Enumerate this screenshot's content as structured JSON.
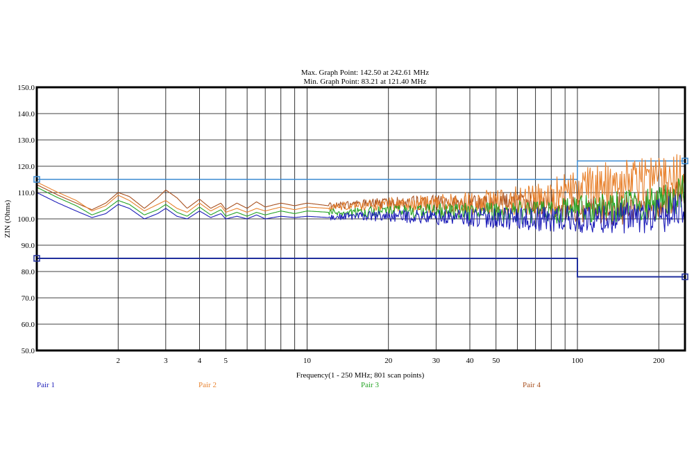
{
  "chart_data": {
    "type": "line",
    "title_lines": [
      "Max. Graph Point: 142.50 at 242.61 MHz",
      "Min. Graph Point: 83.21 at 121.40 MHz"
    ],
    "xlabel": "Frequency(1 - 250 MHz; 801 scan points)",
    "ylabel": "ZIN (Ohms)",
    "x_scale": "log",
    "xlim": [
      1,
      250
    ],
    "ylim": [
      50,
      150
    ],
    "grid": true,
    "x_tick_values": [
      2,
      3,
      4,
      5,
      10,
      20,
      30,
      40,
      50,
      100,
      200
    ],
    "x_tick_labels": [
      "2",
      "3",
      "4",
      "5",
      "10",
      "20",
      "30",
      "40",
      "50",
      "100",
      "200"
    ],
    "x_minor_grid": [
      6,
      7,
      8,
      9,
      60,
      70,
      80,
      90
    ],
    "y_tick_values": [
      50,
      60,
      70,
      80,
      90,
      100,
      110,
      120,
      130,
      140,
      150
    ],
    "y_tick_labels": [
      "50.0",
      "60.0",
      "70.0",
      "80.0",
      "90.0",
      "100.0",
      "110.0",
      "120.0",
      "130.0",
      "140.0",
      "150.0"
    ],
    "limit_lines": [
      {
        "color": "#3a8ad2",
        "points": [
          [
            1,
            115
          ],
          [
            100,
            115
          ],
          [
            100,
            122
          ],
          [
            250,
            122
          ]
        ]
      },
      {
        "color": "#1f2e9c",
        "points": [
          [
            1,
            85
          ],
          [
            100,
            85
          ],
          [
            100,
            78
          ],
          [
            250,
            78
          ]
        ]
      }
    ],
    "series": [
      {
        "name": "Pair 1",
        "color": "#1c1cb8",
        "x": [
          1,
          1.2,
          1.4,
          1.6,
          1.8,
          2,
          2.2,
          2.5,
          2.8,
          3,
          3.3,
          3.6,
          4,
          4.4,
          4.8,
          5,
          5.5,
          6,
          6.5,
          7,
          8,
          9,
          10,
          12,
          15,
          20,
          25,
          30,
          40,
          50,
          60,
          70,
          80,
          90,
          100,
          120,
          150,
          200,
          250
        ],
        "y": [
          110,
          106,
          103,
          100.5,
          102,
          105.5,
          104,
          100,
          102,
          104,
          101,
          100,
          103,
          100.5,
          102,
          100,
          101,
          100,
          101.5,
          100,
          101,
          100.5,
          101,
          100.5,
          101,
          101,
          101,
          100.5,
          100.5,
          100.5,
          100,
          100,
          100,
          100,
          99.5,
          100,
          100,
          101,
          103
        ]
      },
      {
        "name": "Pair 2",
        "color": "#e8822e",
        "x": [
          1,
          1.2,
          1.4,
          1.6,
          1.8,
          2,
          2.2,
          2.5,
          2.8,
          3,
          3.3,
          3.6,
          4,
          4.4,
          4.8,
          5,
          5.5,
          6,
          6.5,
          7,
          8,
          9,
          10,
          12,
          15,
          20,
          25,
          30,
          40,
          50,
          60,
          70,
          80,
          90,
          100,
          120,
          150,
          200,
          250
        ],
        "y": [
          114,
          110,
          107,
          103,
          105,
          109,
          107,
          103,
          105.5,
          107,
          104,
          102.5,
          106,
          103,
          105,
          102.5,
          104,
          102.5,
          104,
          103,
          104.5,
          103.5,
          104.5,
          104,
          105,
          105.5,
          105.5,
          105.5,
          106,
          106.5,
          107,
          108,
          109,
          110,
          111,
          113,
          115,
          116,
          118
        ]
      },
      {
        "name": "Pair 3",
        "color": "#25a425",
        "x": [
          1,
          1.2,
          1.4,
          1.6,
          1.8,
          2,
          2.2,
          2.5,
          2.8,
          3,
          3.3,
          3.6,
          4,
          4.4,
          4.8,
          5,
          5.5,
          6,
          6.5,
          7,
          8,
          9,
          10,
          12,
          15,
          20,
          25,
          30,
          40,
          50,
          60,
          70,
          80,
          90,
          100,
          120,
          150,
          200,
          250
        ],
        "y": [
          112,
          108,
          105,
          101.5,
          103.5,
          107,
          105.5,
          101.5,
          103.5,
          105.5,
          102.5,
          101,
          104.5,
          101.5,
          103.5,
          101,
          102.5,
          101,
          102.5,
          101.5,
          103,
          102,
          103,
          102.5,
          102.5,
          103,
          103,
          103,
          102.5,
          102.5,
          102.5,
          102.5,
          102.5,
          103,
          103.5,
          104,
          105,
          106,
          110
        ]
      },
      {
        "name": "Pair 4",
        "color": "#a8501e",
        "x": [
          1,
          1.2,
          1.4,
          1.6,
          1.8,
          2,
          2.2,
          2.5,
          2.8,
          3,
          3.3,
          3.6,
          4,
          4.4,
          4.8,
          5,
          5.5,
          6,
          6.5,
          7,
          8,
          9,
          10,
          12,
          15,
          20,
          25,
          30,
          40,
          50,
          60,
          70,
          80,
          90,
          100,
          120,
          150,
          200,
          250
        ],
        "y": [
          113,
          109,
          106,
          103.5,
          106,
          110,
          108.5,
          104,
          108,
          111,
          108,
          104,
          107.5,
          104,
          106,
          103.5,
          106,
          104,
          106.5,
          104.5,
          106,
          105,
          106,
          105,
          105.5,
          106,
          106,
          106,
          106,
          106,
          106,
          105.5,
          105,
          104.5,
          104,
          103.5,
          104,
          106,
          110
        ]
      }
    ]
  }
}
